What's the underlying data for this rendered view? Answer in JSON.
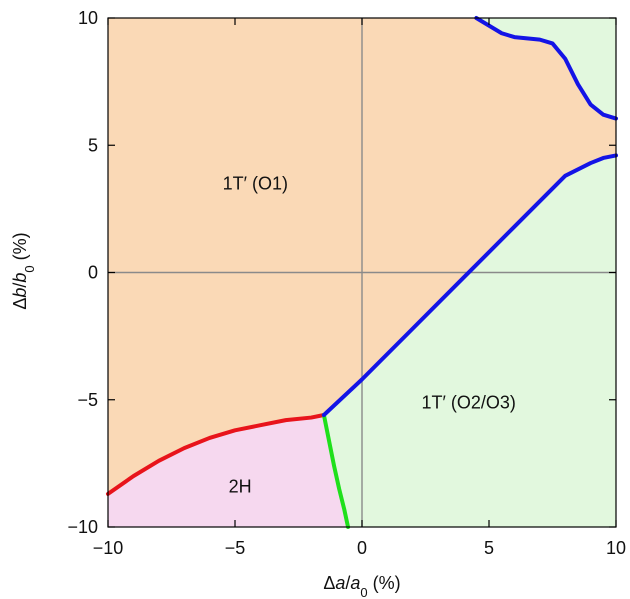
{
  "chart_data": {
    "type": "area",
    "xlabel": {
      "pre": "Δ",
      "var": "a",
      "slash": "/",
      "var0": "a",
      "sub": "0",
      "post": " (%)"
    },
    "ylabel": {
      "pre": "Δ",
      "var": "b",
      "slash": "/",
      "var0": "b",
      "sub": "0",
      "post": " (%)"
    },
    "xlim": [
      -10,
      10
    ],
    "ylim": [
      -10,
      10
    ],
    "xticks": [
      -10,
      -5,
      0,
      5,
      10
    ],
    "yticks": [
      -10,
      -5,
      0,
      5,
      10
    ],
    "xtick_labels": [
      "−10",
      "−5",
      "0",
      "5",
      "10"
    ],
    "ytick_labels": [
      "−10",
      "−5",
      "0",
      "5",
      "10"
    ],
    "zero_lines": true,
    "regions": [
      {
        "label": "1T′ (O1)",
        "color": "#fad9b6",
        "label_at": [
          -4.2,
          3.5
        ]
      },
      {
        "label": "1T′ (O2/O3)",
        "color": "#e2f8de",
        "label_at": [
          4.2,
          -5.1
        ]
      },
      {
        "label": "2H",
        "color": "#f6d8ef",
        "label_at": [
          -4.8,
          -8.4
        ]
      }
    ],
    "series": [
      {
        "color": "#e8141b",
        "x": [
          -10,
          -9,
          -8,
          -7,
          -6,
          -5,
          -4,
          -3,
          -2,
          -1.5
        ],
        "y": [
          -8.7,
          -8.0,
          -7.4,
          -6.9,
          -6.5,
          -6.2,
          -6.0,
          -5.8,
          -5.7,
          -5.6
        ]
      },
      {
        "color": "#1fe01b",
        "x": [
          -1.5,
          -1.3,
          -1.1,
          -0.9,
          -0.7,
          -0.55
        ],
        "y": [
          -5.6,
          -6.6,
          -7.6,
          -8.5,
          -9.3,
          -10
        ]
      },
      {
        "color": "#1414e6",
        "x": [
          -1.5,
          0,
          2,
          4,
          6,
          8,
          9,
          9.5,
          10
        ],
        "y": [
          -5.6,
          -4.2,
          -2.2,
          -0.2,
          1.8,
          3.8,
          4.3,
          4.5,
          4.6
        ]
      },
      {
        "color": "#1414e6",
        "x": [
          4.5,
          5,
          5.5,
          6,
          6.5,
          7,
          7.5,
          8,
          8.5,
          9,
          9.5,
          10
        ],
        "y": [
          10,
          9.7,
          9.4,
          9.25,
          9.2,
          9.15,
          9.0,
          8.4,
          7.4,
          6.6,
          6.2,
          6.05
        ]
      }
    ],
    "region_boundaries": {
      "red": {
        "x": [
          -10,
          -9,
          -8,
          -7,
          -6,
          -5,
          -4,
          -3,
          -2,
          -1.5
        ],
        "y": [
          -8.7,
          -8.0,
          -7.4,
          -6.9,
          -6.5,
          -6.2,
          -6.0,
          -5.8,
          -5.7,
          -5.6
        ]
      }
    }
  }
}
